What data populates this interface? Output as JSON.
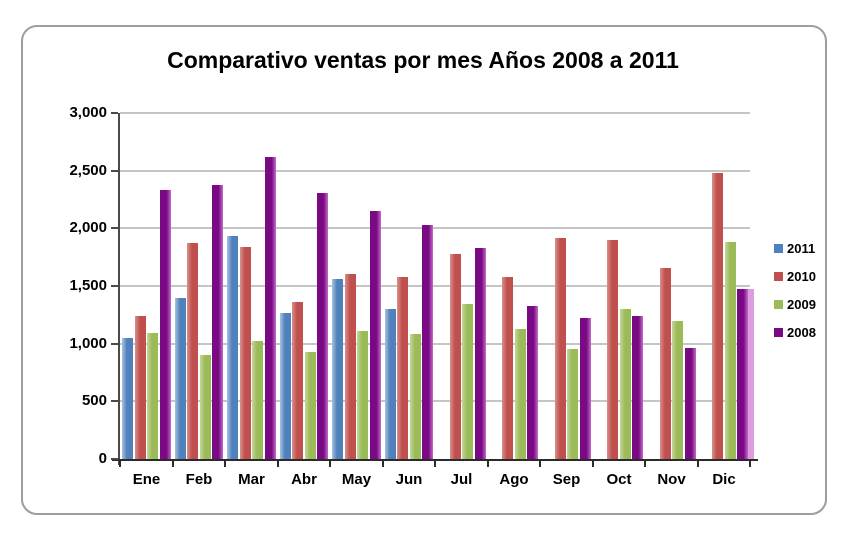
{
  "chart_data": {
    "type": "bar",
    "title": "Comparativo ventas por mes Años 2008 a 2011",
    "categories": [
      "Ene",
      "Feb",
      "Mar",
      "Abr",
      "May",
      "Jun",
      "Jul",
      "Ago",
      "Sep",
      "Oct",
      "Nov",
      "Dic"
    ],
    "series": [
      {
        "name": "2011",
        "color": "#4F81BD",
        "highlight": "#A9C2DF",
        "highlight_side": "left",
        "values": [
          1050,
          1400,
          1930,
          1270,
          1560,
          1300,
          null,
          null,
          null,
          null,
          null,
          null
        ]
      },
      {
        "name": "2010",
        "color": "#C0504D",
        "highlight": "#D8908D",
        "highlight_side": "left",
        "values": [
          1240,
          1875,
          1840,
          1360,
          1600,
          1580,
          1780,
          1580,
          1920,
          1900,
          1660,
          2480
        ]
      },
      {
        "name": "2009",
        "color": "#9BBB59",
        "highlight": "#C3D69B",
        "highlight_side": "left",
        "values": [
          1090,
          900,
          1020,
          930,
          1110,
          1080,
          1340,
          1130,
          950,
          1300,
          1200,
          1880
        ]
      },
      {
        "name": "2008",
        "color": "#7A0A84",
        "highlight": "#C36BC9",
        "highlight_side": "right",
        "values": [
          2330,
          2375,
          2620,
          2310,
          2150,
          2030,
          1830,
          1330,
          1220,
          1240,
          960,
          1470
        ]
      }
    ],
    "ylim": [
      0,
      3000
    ],
    "ytick_interval": 500,
    "ytick_labels": [
      "0",
      "500",
      "1,000",
      "1,500",
      "2,000",
      "2,500",
      "3,000"
    ],
    "xlabel": "",
    "ylabel": "",
    "grid": "horizontal",
    "legend_position": "right",
    "legend_order": [
      "2011",
      "2010",
      "2009",
      "2008"
    ],
    "edge_strip": {
      "category": "Dic",
      "color": "#DD9CDE",
      "value": 1470
    }
  },
  "frame": {
    "border_color": "#9D9D9D",
    "gridline_color": "#C5C5C5",
    "axis_color": "#4A4A4A"
  }
}
